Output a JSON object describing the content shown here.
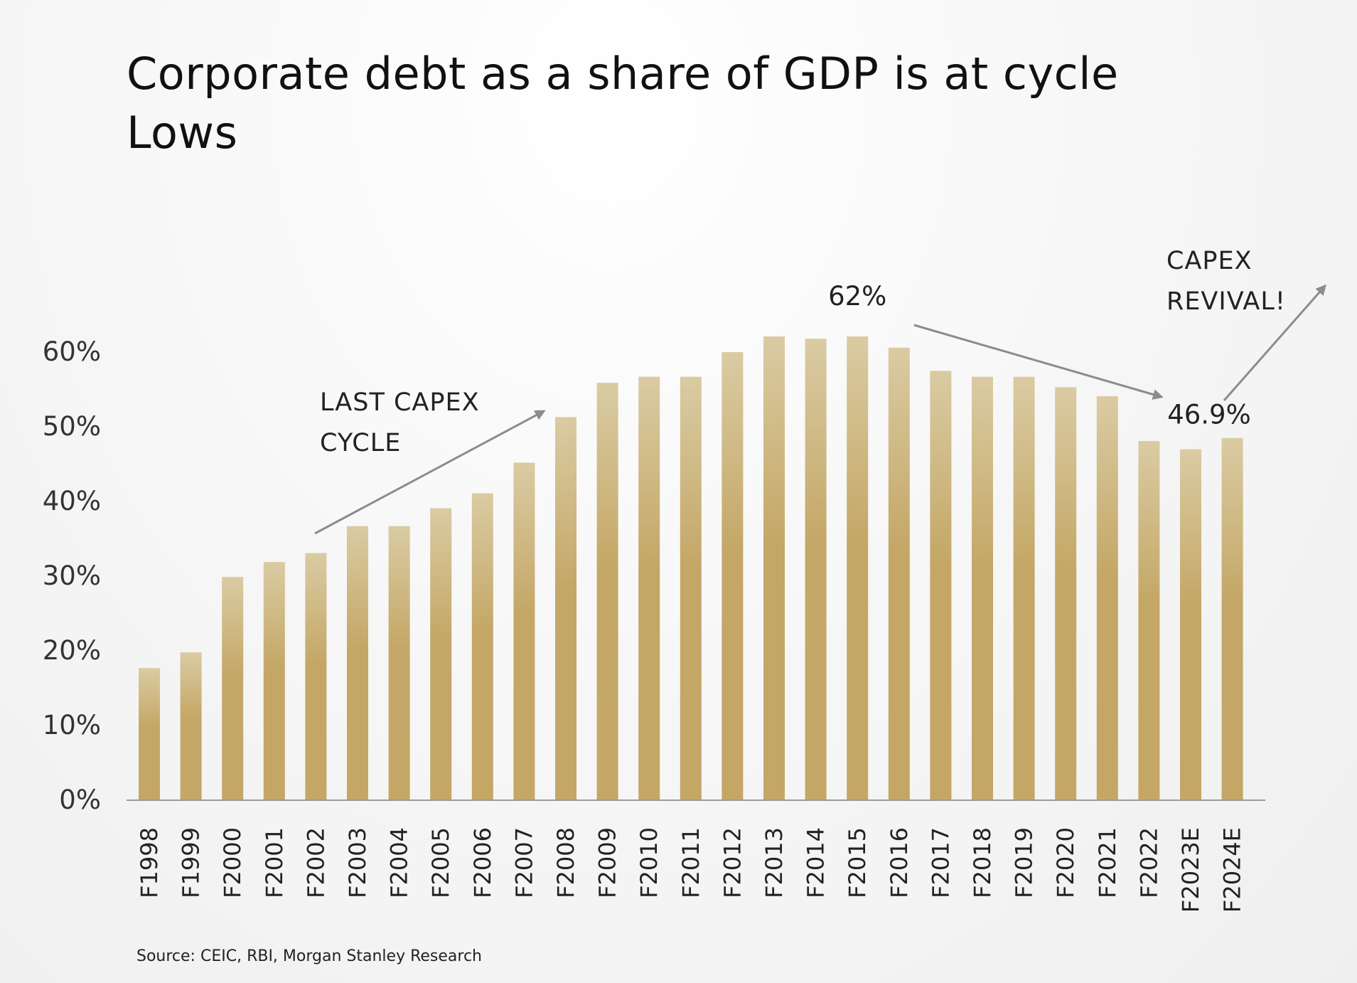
{
  "title": "Corporate debt as a share of GDP is at cycle Lows",
  "source": "Source: CEIC, RBI, Morgan Stanley Research",
  "colors": {
    "bar_top": "#dacba3",
    "bar_bottom": "#c4a766",
    "arrow": "#8c8c8c",
    "axis": "#9a9a9a"
  },
  "chart_data": {
    "type": "bar",
    "title": "Corporate debt as a share of GDP is at cycle Lows",
    "xlabel": "",
    "ylabel": "",
    "ylim": [
      0,
      60
    ],
    "y_ticks": [
      "0%",
      "10%",
      "20%",
      "30%",
      "40%",
      "50%",
      "60%"
    ],
    "grid": false,
    "legend": "none",
    "categories": [
      "F1998",
      "F1999",
      "F2000",
      "F2001",
      "F2002",
      "F2003",
      "F2004",
      "F2005",
      "F2006",
      "F2007",
      "F2008",
      "F2009",
      "F2010",
      "F2011",
      "F2012",
      "F2013",
      "F2014",
      "F2015",
      "F2016",
      "F2017",
      "F2018",
      "F2019",
      "F2020",
      "F2021",
      "F2022",
      "F2023E",
      "F2024E"
    ],
    "values": [
      17.6,
      19.7,
      29.8,
      31.8,
      33.0,
      36.6,
      36.6,
      39.0,
      41.0,
      45.1,
      51.2,
      55.8,
      56.6,
      56.6,
      59.9,
      62.0,
      61.7,
      62.0,
      60.5,
      57.4,
      56.6,
      56.6,
      55.2,
      54.0,
      48.0,
      46.9,
      48.4
    ],
    "data_labels": [
      {
        "category": "F2015",
        "text": "62%"
      },
      {
        "category": "F2023E",
        "text": "46.9%"
      }
    ],
    "annotations": [
      {
        "id": "last-capex",
        "lines": [
          "LAST CAPEX",
          "CYCLE"
        ]
      },
      {
        "id": "capex-revival",
        "lines": [
          "CAPEX",
          "REVIVAL!"
        ]
      }
    ]
  }
}
